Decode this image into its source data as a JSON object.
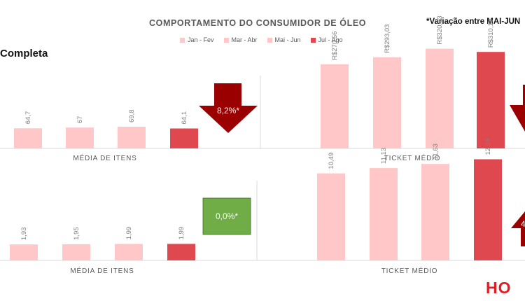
{
  "header": {
    "title": "COMPORTAMENTO DO CONSUMIDOR DE ÓLEO",
    "note": "*Variação entre MAI-JUN",
    "subtitle": "Completa",
    "brand": "HO"
  },
  "legend": [
    {
      "label": "Jan - Fev",
      "color": "#ffc7c7"
    },
    {
      "label": "Mar - Abr",
      "color": "#ffc7c7"
    },
    {
      "label": "Mai - Jun",
      "color": "#ffc7c7"
    },
    {
      "label": "Jul - Ago",
      "color": "#e0484f"
    }
  ],
  "chart_data": [
    {
      "type": "bar",
      "categories": [
        "Jan - Fev",
        "Mar - Abr",
        "Mai - Jun",
        "Jul - Ago"
      ],
      "values": [
        64.7,
        67,
        69.8,
        64.1
      ],
      "data_labels": [
        "64,7",
        "67",
        "69,8",
        "64,1"
      ],
      "xlabel": "MÉDIA DE ITENS",
      "ylim": [
        0,
        360
      ],
      "callout": {
        "text": "8,2%*",
        "shape": "down-arrow",
        "color": "#9b0000"
      }
    },
    {
      "type": "bar",
      "categories": [
        "Jan - Fev",
        "Mar - Abr",
        "Mai - Jun",
        "Jul - Ago"
      ],
      "values": [
        270.56,
        293.03,
        320.33,
        310.1
      ],
      "data_labels": [
        "R$270,56",
        "R$293,03",
        "R$320,33",
        "R$310,10"
      ],
      "xlabel": "TICKET MÉDIO",
      "ylim": [
        0,
        360
      ],
      "callout": {
        "text": "",
        "shape": "down-arrow-clipped",
        "color": "#9b0000"
      }
    },
    {
      "type": "bar",
      "categories": [
        "Jan - Fev",
        "Mar - Abr",
        "Mai - Jun",
        "Jul - Ago"
      ],
      "values": [
        1.93,
        1.95,
        1.99,
        1.99
      ],
      "data_labels": [
        "1,93",
        "1,95",
        "1,99",
        "1,99"
      ],
      "xlabel": "MÉDIA DE ITENS",
      "ylim": [
        0,
        13.5
      ],
      "callout": {
        "text": "0,0%*",
        "shape": "box",
        "color": "#70ad47"
      }
    },
    {
      "type": "bar",
      "categories": [
        "Jan - Fev",
        "Mar - Abr",
        "Mai - Jun",
        "Jul - Ago"
      ],
      "values": [
        10.49,
        11.13,
        11.63,
        12.19
      ],
      "data_labels": [
        "10,49",
        "11,13",
        "11,63",
        "12,19"
      ],
      "xlabel": "TICKET MÉDIO",
      "ylim": [
        0,
        13.5
      ],
      "callout": {
        "text": "4",
        "shape": "up-arrow-clipped",
        "color": "#9b0000"
      }
    }
  ],
  "colors": {
    "light_bar": "#ffc7c7",
    "dark_bar": "#e0484f",
    "axis": "#d9d9d9"
  }
}
